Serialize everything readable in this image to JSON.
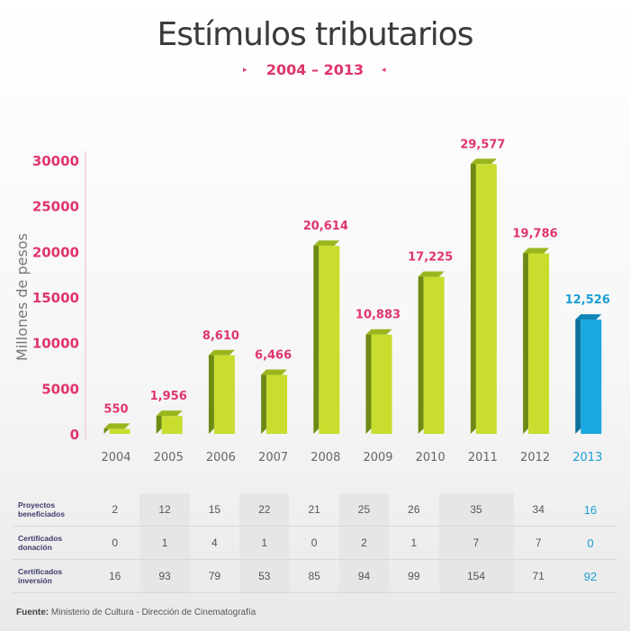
{
  "header": {
    "title": "Estímulos tributarios",
    "subtitle": "2004 – 2013",
    "arrow_left": "▸",
    "arrow_right": "◂"
  },
  "colors": {
    "bar_face": "#c8dd2e",
    "bar_side": "#6f8a14",
    "bar_top": "#9ab61f",
    "highlight_face": "#19a8df",
    "highlight_side": "#0d6f9a",
    "highlight_top": "#0f86b9",
    "pink": "#e0356a",
    "blue": "#1a9fd4"
  },
  "chart_data": {
    "type": "bar",
    "title": "Estímulos tributarios",
    "subtitle": "2004 – 2013",
    "ylabel": "Millones de pesos",
    "xlabel": "",
    "ylim": [
      0,
      30000
    ],
    "yticks": [
      "0",
      "5000",
      "10000",
      "15000",
      "20000",
      "25000",
      "30000"
    ],
    "categories": [
      "2004",
      "2005",
      "2006",
      "2007",
      "2008",
      "2009",
      "2010",
      "2011",
      "2012",
      "2013"
    ],
    "values": [
      550,
      1956,
      8610,
      6466,
      20614,
      10883,
      17225,
      29577,
      19786,
      12526
    ],
    "value_labels": [
      "550",
      "1,956",
      "8,610",
      "6,466",
      "20,614",
      "10,883",
      "17,225",
      "29,577",
      "19,786",
      "12,526"
    ],
    "highlight_category": "2013",
    "grid": false,
    "legend": "none"
  },
  "table": {
    "rows": [
      {
        "label": "Proyectos\nbeneficiados",
        "values": [
          "2",
          "12",
          "15",
          "22",
          "21",
          "25",
          "26",
          "35",
          "34",
          "16"
        ]
      },
      {
        "label": "Certificados\ndonación",
        "values": [
          "0",
          "1",
          "4",
          "1",
          "0",
          "2",
          "1",
          "7",
          "7",
          "0"
        ]
      },
      {
        "label": "Certificados\ninversión",
        "values": [
          "16",
          "93",
          "79",
          "53",
          "85",
          "94",
          "99",
          "154",
          "71",
          "92"
        ]
      }
    ]
  },
  "source": {
    "label": "Fuente:",
    "text": " Ministerio de Cultura - Dirección de Cinematografía"
  }
}
